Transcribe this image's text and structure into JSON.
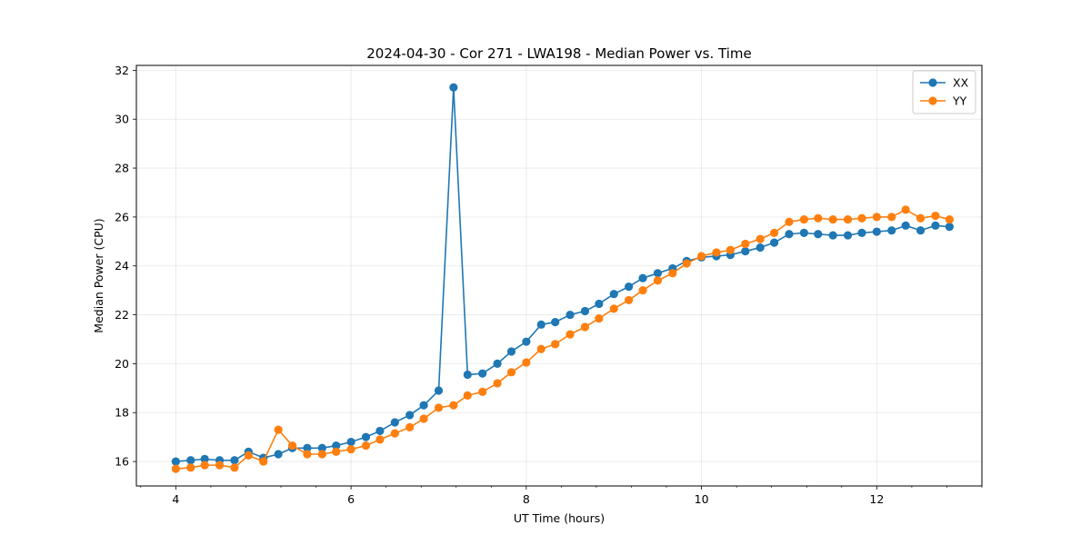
{
  "chart_data": {
    "type": "line",
    "title": "2024-04-30 - Cor 271 - LWA198 - Median Power vs. Time",
    "xlabel": "UT Time (hours)",
    "ylabel": "Median Power (CPU)",
    "xlim": [
      3.55,
      13.2
    ],
    "ylim": [
      15.0,
      32.2
    ],
    "xticks": [
      4,
      6,
      8,
      10,
      12
    ],
    "yticks": [
      16,
      18,
      20,
      22,
      24,
      26,
      28,
      30,
      32
    ],
    "xminor_step": 0.4,
    "grid": true,
    "legend_position": "top-right",
    "x": [
      4.0,
      4.17,
      4.33,
      4.5,
      4.67,
      4.83,
      5.0,
      5.17,
      5.33,
      5.5,
      5.67,
      5.83,
      6.0,
      6.17,
      6.33,
      6.5,
      6.67,
      6.83,
      7.0,
      7.17,
      7.33,
      7.5,
      7.67,
      7.83,
      8.0,
      8.17,
      8.33,
      8.5,
      8.67,
      8.83,
      9.0,
      9.17,
      9.33,
      9.5,
      9.67,
      9.83,
      10.0,
      10.17,
      10.33,
      10.5,
      10.67,
      10.83,
      11.0,
      11.17,
      11.33,
      11.5,
      11.67,
      11.83,
      12.0,
      12.17,
      12.33,
      12.5,
      12.67,
      12.83
    ],
    "series": [
      {
        "name": "XX",
        "color": "#1f77b4",
        "values": [
          16.0,
          16.05,
          16.1,
          16.05,
          16.05,
          16.4,
          16.15,
          16.3,
          16.55,
          16.55,
          16.55,
          16.65,
          16.8,
          17.0,
          17.25,
          17.6,
          17.9,
          18.3,
          18.9,
          31.3,
          19.55,
          19.6,
          20.0,
          20.5,
          20.9,
          21.6,
          21.7,
          22.0,
          22.15,
          22.45,
          22.85,
          23.15,
          23.5,
          23.7,
          23.9,
          24.2,
          24.35,
          24.4,
          24.45,
          24.6,
          24.75,
          24.95,
          25.3,
          25.35,
          25.3,
          25.25,
          25.25,
          25.35,
          25.4,
          25.45,
          25.65,
          25.45,
          25.65,
          25.6
        ]
      },
      {
        "name": "YY",
        "color": "#ff7f0e",
        "values": [
          15.7,
          15.75,
          15.85,
          15.85,
          15.75,
          16.25,
          16.0,
          17.3,
          16.65,
          16.3,
          16.3,
          16.4,
          16.5,
          16.65,
          16.9,
          17.15,
          17.4,
          17.75,
          18.2,
          18.3,
          18.7,
          18.85,
          19.2,
          19.65,
          20.05,
          20.6,
          20.8,
          21.2,
          21.5,
          21.85,
          22.25,
          22.6,
          23.0,
          23.4,
          23.7,
          24.1,
          24.4,
          24.55,
          24.65,
          24.9,
          25.1,
          25.35,
          25.8,
          25.9,
          25.95,
          25.9,
          25.9,
          25.95,
          26.0,
          26.0,
          26.3,
          25.95,
          26.05,
          25.9
        ]
      }
    ]
  }
}
